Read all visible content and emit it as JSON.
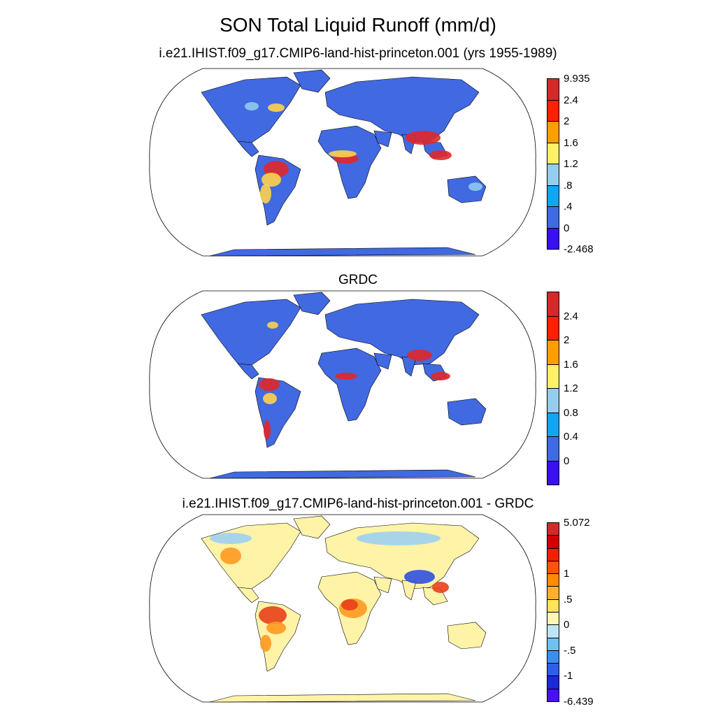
{
  "title": "SON Total Liquid Runoff (mm/d)",
  "panels": [
    {
      "id": "p1",
      "subtitle": "i.e21.IHIST.f09_g17.CMIP6-land-hist-princeton.001 (yrs 1955-1989)",
      "colorbar": {
        "colors": [
          "#3a10f0",
          "#3f6be0",
          "#12a5f2",
          "#96cdec",
          "#fff06a",
          "#ff9e00",
          "#ff2000",
          "#d22a2a"
        ],
        "labels": [
          "-2.468",
          "0",
          ".4",
          ".8",
          "1.2",
          "1.6",
          "2",
          "2.4",
          "9.935"
        ]
      }
    },
    {
      "id": "p2",
      "subtitle": "GRDC",
      "colorbar": {
        "colors": [
          "#3a10f0",
          "#3f6be0",
          "#12a5f2",
          "#96cdec",
          "#fff06a",
          "#ff9e00",
          "#ff2000",
          "#d22a2a"
        ],
        "labels": [
          "",
          "0",
          "0.4",
          "0.8",
          "1.2",
          "1.6",
          "2",
          "2.4",
          ""
        ]
      }
    },
    {
      "id": "p3",
      "subtitle": "i.e21.IHIST.f09_g17.CMIP6-land-hist-princeton.001 - GRDC",
      "colorbar": {
        "colors": [
          "#4b10f0",
          "#1a2ad6",
          "#2f5fe6",
          "#3a8ef0",
          "#6cc3f2",
          "#bfe5f5",
          "#fff6b6",
          "#ffe35a",
          "#ffb030",
          "#ff8c00",
          "#ff5500",
          "#ee2200",
          "#d20000",
          "#d22a2a"
        ],
        "labels": [
          "-6.439",
          "",
          "-1",
          "",
          "-.5",
          "",
          "0",
          "",
          ".5",
          "",
          "1",
          "",
          "",
          "",
          "5.072"
        ]
      }
    }
  ],
  "map_colors": {
    "ocean": "#ffffff",
    "p1_base": "#4169e1",
    "p1_hot": "#e0282a",
    "p1_warm": "#ffd24a",
    "p1_light": "#8fcaf0",
    "p2_base": "#4169e1",
    "p2_hot": "#e0282a",
    "p2_warm": "#ffd24a",
    "p3_base": "#fff3a8",
    "p3_hot": "#e8401a",
    "p3_warm": "#ff9a20",
    "p3_cool": "#9fd0f0",
    "p3_cold": "#3050e0"
  }
}
